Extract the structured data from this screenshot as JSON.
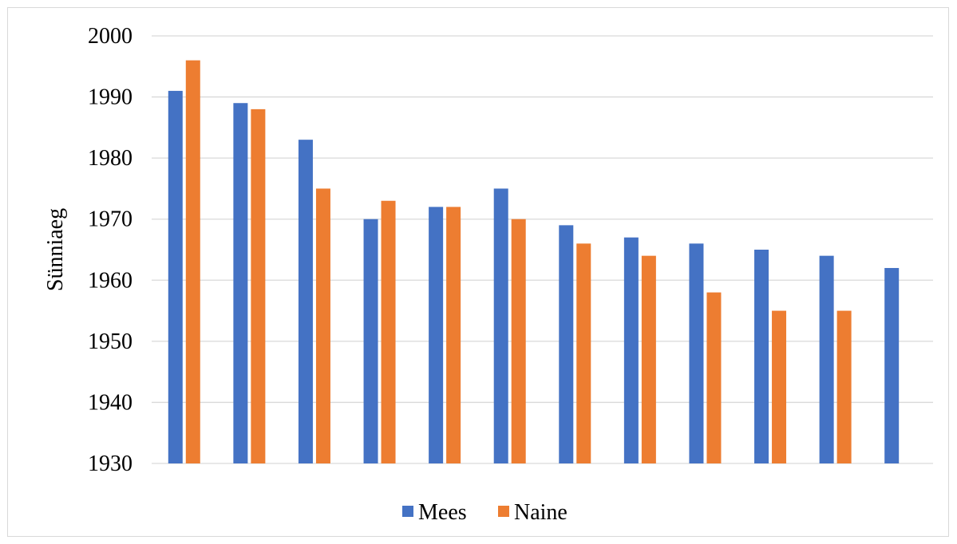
{
  "chart_data": {
    "type": "bar",
    "title": "",
    "xlabel": "",
    "ylabel": "Sünniaeg",
    "ylim": [
      1930,
      2000
    ],
    "yticks": [
      1930,
      1940,
      1950,
      1960,
      1970,
      1980,
      1990,
      2000
    ],
    "grid": true,
    "legend_position": "bottom",
    "categories": [
      "",
      "",
      "",
      "",
      "",
      "",
      "",
      "",
      "",
      "",
      "",
      ""
    ],
    "series": [
      {
        "name": "Mees",
        "color": "#4472c4",
        "values": [
          1991,
          1989,
          1983,
          1970,
          1972,
          1975,
          1969,
          1967,
          1966,
          1965,
          1964,
          1962
        ]
      },
      {
        "name": "Naine",
        "color": "#ed7d31",
        "values": [
          1996,
          1988,
          1975,
          1973,
          1972,
          1970,
          1966,
          1964,
          1958,
          1955,
          1955,
          null
        ]
      }
    ]
  }
}
